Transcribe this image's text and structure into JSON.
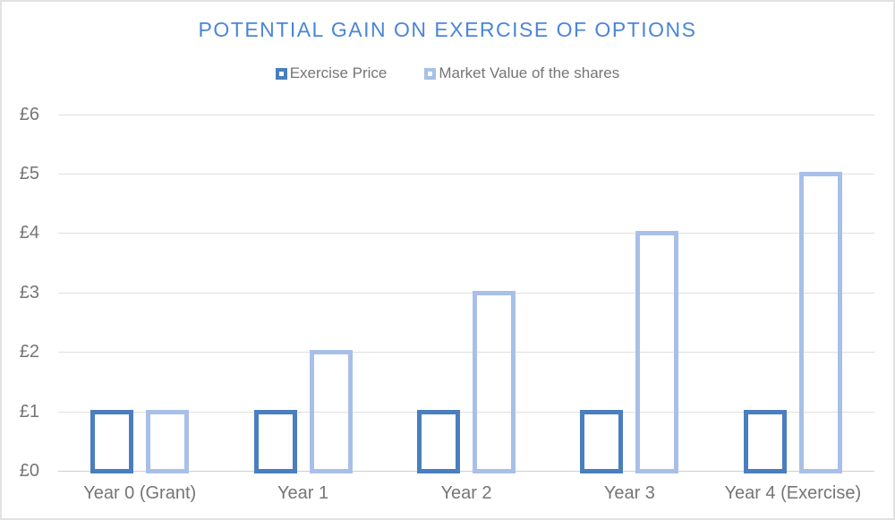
{
  "chart_data": {
    "type": "bar",
    "title": "POTENTIAL GAIN ON EXERCISE OF OPTIONS",
    "title_color": "#4a86d8",
    "categories": [
      "Year 0 (Grant)",
      "Year 1",
      "Year 2",
      "Year 3",
      "Year 4 (Exercise)"
    ],
    "series": [
      {
        "name": "Exercise Price",
        "values": [
          1,
          1,
          1,
          1,
          1
        ],
        "color": "#4a7ebe",
        "fill": "none"
      },
      {
        "name": "Market Value of the shares",
        "values": [
          1,
          2,
          3,
          4,
          5
        ],
        "color": "#a8c0e8",
        "fill": "none"
      }
    ],
    "xlabel": "",
    "ylabel": "",
    "ylim": [
      0,
      6
    ],
    "ytick_labels": [
      "£0",
      "£1",
      "£2",
      "£3",
      "£4",
      "£5",
      "£6"
    ],
    "currency": "£",
    "grid": "horizontal",
    "legend_position": "top",
    "bar_style": "outlined-hollow",
    "text_color": "#757575",
    "gridline_color": "#e0e0e0",
    "axisline_color": "#cfcfcf",
    "background_color": "#ffffff"
  }
}
